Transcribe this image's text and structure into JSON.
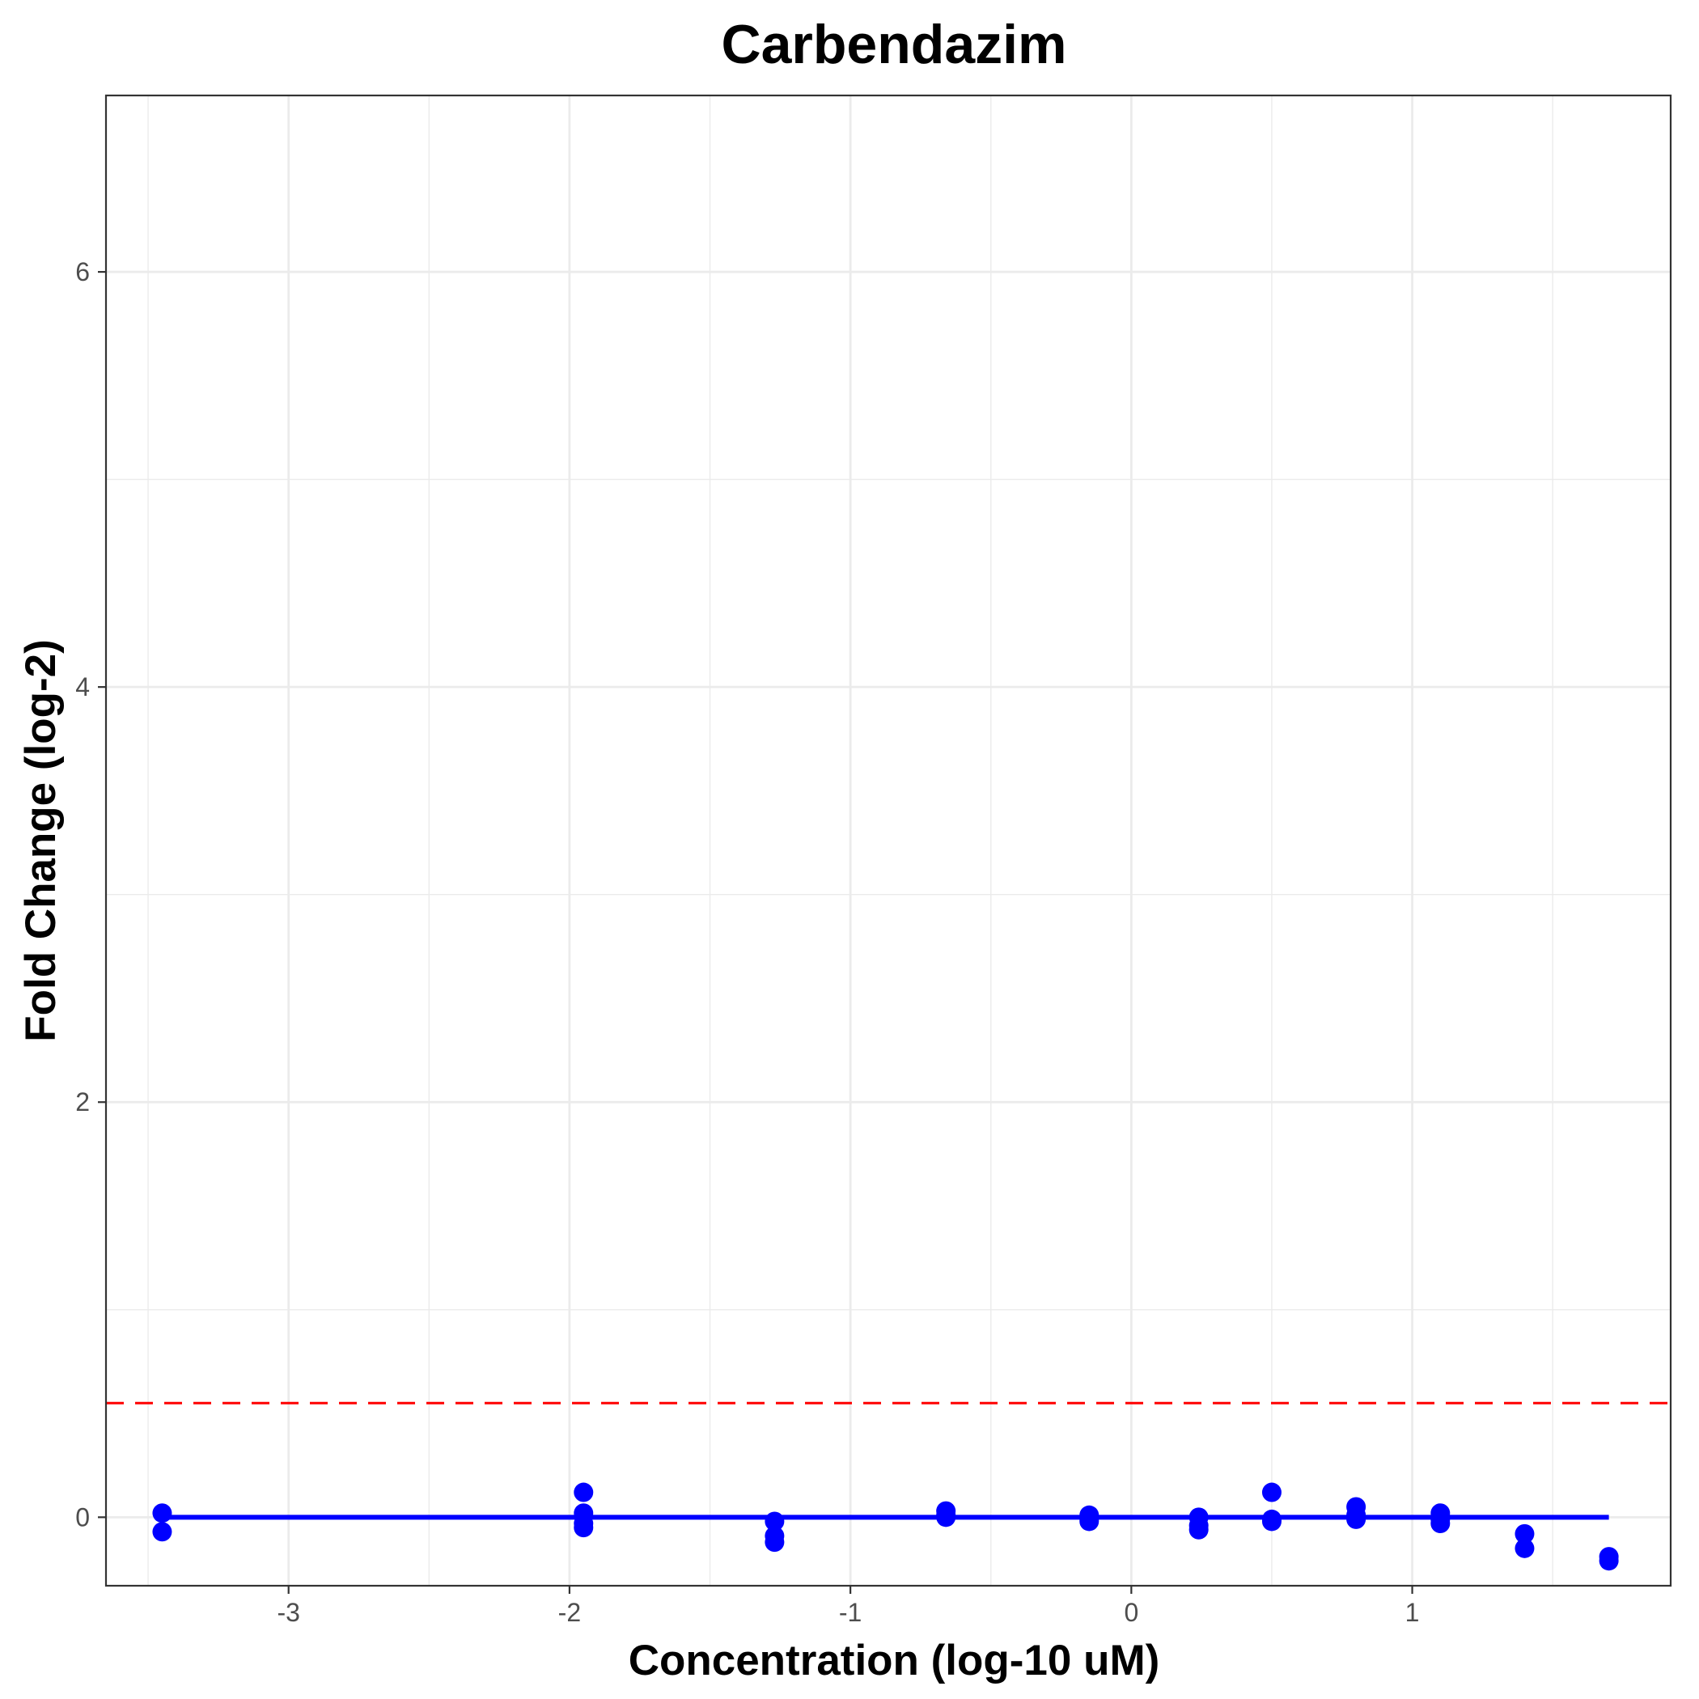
{
  "chart_data": {
    "type": "scatter",
    "title": "Carbendazim",
    "xlabel": "Concentration (log-10 uM)",
    "ylabel": "Fold Change (log-2)",
    "xlim": [
      -3.65,
      1.92
    ],
    "ylim": [
      -0.33,
      6.85
    ],
    "x_ticks": [
      -3,
      -2,
      -1,
      0,
      1
    ],
    "x_tick_labels": [
      "-3",
      "-2",
      "-1",
      "0",
      "1"
    ],
    "x_minor_ticks": [
      -3.5,
      -2.5,
      -1.5,
      -0.5,
      0.5,
      1.5
    ],
    "y_ticks": [
      0,
      2,
      4,
      6
    ],
    "y_tick_labels": [
      "0",
      "2",
      "4",
      "6"
    ],
    "y_minor_ticks": [
      1,
      3,
      5
    ],
    "grid": true,
    "threshold": {
      "y": 0.55,
      "style": "dashed",
      "color": "#ff0000"
    },
    "fit_line": {
      "x": [
        -3.45,
        1.7
      ],
      "y": [
        0,
        0
      ],
      "color": "#0000ff"
    },
    "points_color": "#0000ff",
    "points": [
      {
        "x": -3.45,
        "y": 0.02
      },
      {
        "x": -3.45,
        "y": -0.07
      },
      {
        "x": -1.95,
        "y": 0.12
      },
      {
        "x": -1.95,
        "y": 0.02
      },
      {
        "x": -1.95,
        "y": -0.03
      },
      {
        "x": -1.95,
        "y": -0.05
      },
      {
        "x": -1.27,
        "y": -0.02
      },
      {
        "x": -1.27,
        "y": -0.09
      },
      {
        "x": -1.27,
        "y": -0.12
      },
      {
        "x": -0.66,
        "y": 0.03
      },
      {
        "x": -0.66,
        "y": 0.0
      },
      {
        "x": -0.66,
        "y": 0.01
      },
      {
        "x": -0.15,
        "y": 0.01
      },
      {
        "x": -0.15,
        "y": -0.02
      },
      {
        "x": -0.15,
        "y": -0.01
      },
      {
        "x": 0.24,
        "y": 0.0
      },
      {
        "x": 0.24,
        "y": -0.04
      },
      {
        "x": 0.24,
        "y": -0.06
      },
      {
        "x": 0.5,
        "y": 0.12
      },
      {
        "x": 0.5,
        "y": -0.01
      },
      {
        "x": 0.5,
        "y": -0.02
      },
      {
        "x": 0.8,
        "y": 0.05
      },
      {
        "x": 0.8,
        "y": 0.01
      },
      {
        "x": 0.8,
        "y": -0.01
      },
      {
        "x": 1.1,
        "y": 0.02
      },
      {
        "x": 1.1,
        "y": -0.01
      },
      {
        "x": 1.1,
        "y": -0.03
      },
      {
        "x": 1.4,
        "y": -0.08
      },
      {
        "x": 1.4,
        "y": -0.15
      },
      {
        "x": 1.7,
        "y": -0.19
      },
      {
        "x": 1.7,
        "y": -0.21
      }
    ]
  }
}
